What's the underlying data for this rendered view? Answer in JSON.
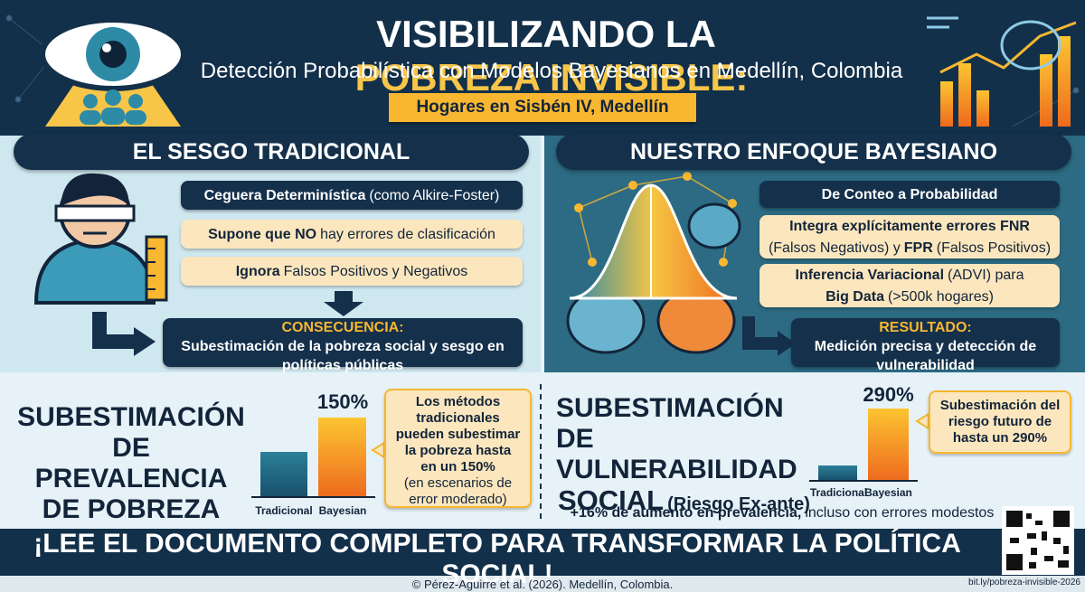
{
  "header": {
    "title_main": "VISIBILIZANDO LA",
    "title_highlight": "POBREZA INVISIBLE:",
    "subtitle": "Detección Probabilística con Modelos Bayesianos en Medellín, Colombia",
    "ribbon": "Hogares en Sisbén IV, Medellín"
  },
  "left_panel": {
    "heading": "EL SESGO TRADICIONAL",
    "items": [
      [
        {
          "text": "Ceguera Determinística",
          "style": "bold"
        },
        {
          "text": "(como Alkire-Foster)",
          "style": "normal"
        }
      ],
      [
        {
          "text": "Supone que NO",
          "style": "bold"
        },
        {
          "text": "hay errores de clasificación",
          "style": "normal"
        }
      ],
      [
        {
          "text": "Ignora",
          "style": "bold"
        },
        {
          "text": "Falsos Positivos y Negativos",
          "style": "normal"
        }
      ]
    ],
    "result": [
      {
        "text": "CONSECUENCIA:",
        "style": "highlight"
      },
      {
        "text": "Subestimación de la pobreza social y sesgo en políticas públicas",
        "style": "bold"
      }
    ]
  },
  "right_panel": {
    "heading": "NUESTRO ENFOQUE BAYESIANO",
    "items": [
      [
        {
          "text": "De Conteo a Probabilidad",
          "style": "bold"
        }
      ],
      [
        {
          "text": "Integra explícitamente errores FNR",
          "style": "bold"
        },
        {
          "text": "(Falsos Negativos) y",
          "style": "normal"
        },
        {
          "text": "FPR",
          "style": "bold"
        },
        {
          "text": "(Falsos Positivos)",
          "style": "normal"
        }
      ],
      [
        {
          "text": "Inferencia Variacional",
          "style": "bold"
        },
        {
          "text": "(ADVI) para",
          "style": "normal"
        },
        {
          "text": "Big Data",
          "style": "bold"
        },
        {
          "text": "(>500k hogares)",
          "style": "normal"
        }
      ]
    ],
    "result": [
      {
        "text": "RESULTADO:",
        "style": "highlight"
      },
      {
        "text": "Medición precisa y detección de vulnerabilidad",
        "style": "bold"
      }
    ]
  },
  "prevalence": {
    "title_lines": [
      "SUBESTIMACIÓN",
      "DE PREVALENCIA",
      "DE POBREZA"
    ],
    "bar_label": "150%",
    "bar_names": [
      "Tradicional",
      "Bayesian"
    ],
    "callout": [
      {
        "text": "Los métodos tradicionales pueden subestimar la pobreza hasta en un 150%",
        "style": "bold"
      },
      {
        "text": "(en escenarios de error moderado)",
        "style": "normal"
      }
    ]
  },
  "vulnerability": {
    "title_lines": [
      "SUBESTIMACIÓN DE",
      "VULNERABILIDAD"
    ],
    "title_last": [
      {
        "text": "SOCIAL",
        "style": "big"
      },
      {
        "text": "(Riesgo Ex-ante)",
        "style": "bold"
      }
    ],
    "bar_label": "290%",
    "bar_names": [
      "Tradicional",
      "Bayesian"
    ],
    "callout": [
      {
        "text": "Subestimación del riesgo futuro de hasta un 290%",
        "style": "bold"
      }
    ],
    "note": [
      {
        "text": "+16% de aumento en prevalencia,",
        "style": "bold"
      },
      {
        "text": "incluso con errores modestos",
        "style": "normal"
      }
    ]
  },
  "footer": {
    "cta": "¡LEE EL DOCUMENTO COMPLETO PARA TRANSFORMAR LA POLÍTICA SOCIAL!",
    "copyright": "© Pérez-Aguirre et al. (2026). Medellín, Colombia.",
    "url": "bit.ly/pobreza-invisible-2026"
  }
}
